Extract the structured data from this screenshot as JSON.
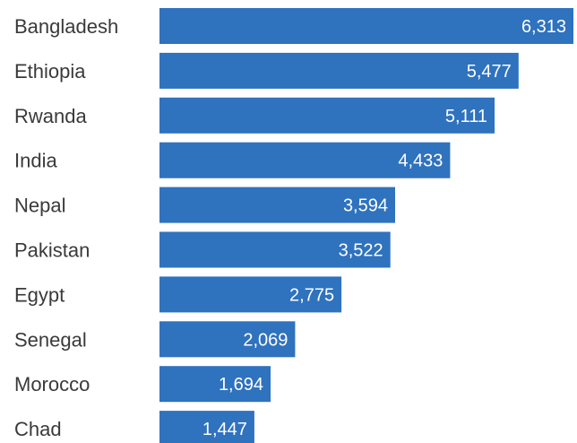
{
  "chart_data": {
    "type": "bar",
    "orientation": "horizontal",
    "categories": [
      "Bangladesh",
      "Ethiopia",
      "Rwanda",
      "India",
      "Nepal",
      "Pakistan",
      "Egypt",
      "Senegal",
      "Morocco",
      "Chad"
    ],
    "values": [
      6313,
      5477,
      5111,
      4433,
      3594,
      3522,
      2775,
      2069,
      1694,
      1447
    ],
    "value_labels": [
      "6,313",
      "5,477",
      "5,111",
      "4,433",
      "3,594",
      "3,522",
      "2,775",
      "2,069",
      "1,694",
      "1,447"
    ],
    "title": "",
    "xlabel": "",
    "ylabel": "",
    "grid": false,
    "bar_color": "#2f72be",
    "label_color": "#3a3a3a",
    "value_label_color": "#ffffff"
  }
}
